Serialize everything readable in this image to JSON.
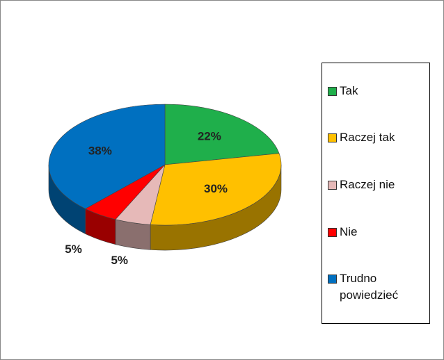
{
  "chart_data": {
    "type": "pie",
    "style": "3d",
    "categories": [
      "Tak",
      "Raczej tak",
      "Raczej nie",
      "Nie",
      "Trudno powiedzieć"
    ],
    "values": [
      22,
      30,
      5,
      5,
      38
    ],
    "value_labels": [
      "22%",
      "30%",
      "5%",
      "5%",
      "38%"
    ],
    "colors": [
      "#1faf4b",
      "#ffc000",
      "#e6b9b8",
      "#ff0000",
      "#0070c0"
    ],
    "legend": "right"
  }
}
